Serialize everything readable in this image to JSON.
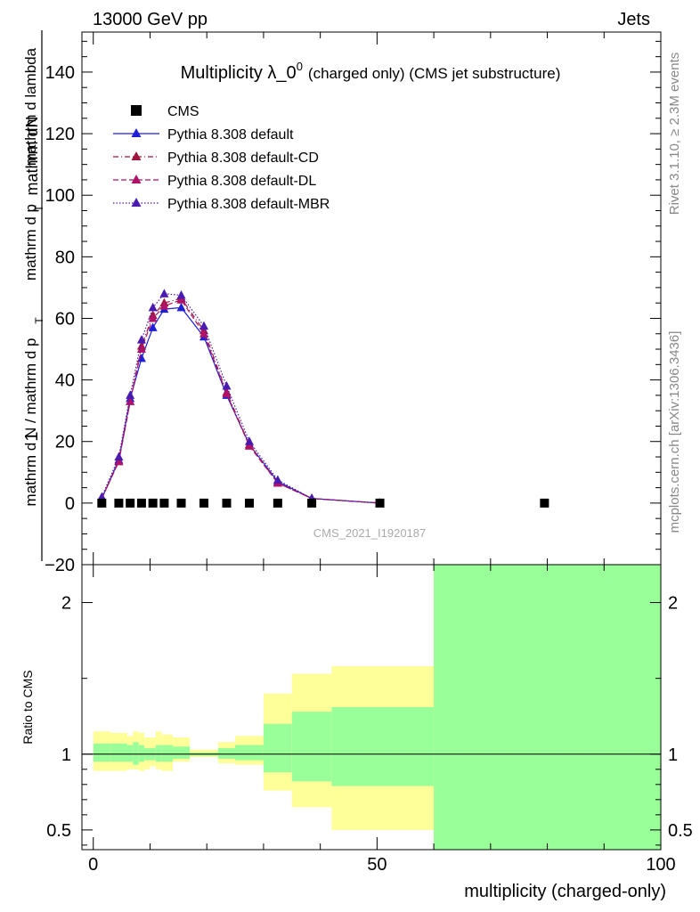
{
  "header": {
    "left": "13000 GeV pp",
    "right": "Jets"
  },
  "side": {
    "rivet": "Rivet 3.1.10, ≥ 2.3M events",
    "mcplots": "mcplots.cern.ch [arXiv:1306.3436]"
  },
  "analysis_id": "CMS_2021_I1920187",
  "chart_data": [
    {
      "type": "line",
      "title_main": "Multiplicity λ_0",
      "title_sup": "0",
      "title_suffix": "(charged only) (CMS jet substructure)",
      "ylabel_num": "1",
      "ylabel_num_dn": "mathrm dN",
      "ylabel_den": "mathrm d N / mathrm d p",
      "ylabel_den2": "mathrm d p",
      "ylabel_den_tail": "mathrm d lambda",
      "ylabel_sub": "T",
      "xlim": [
        -2,
        100
      ],
      "ylim": [
        -20,
        153
      ],
      "yticks": [
        -20,
        0,
        20,
        40,
        60,
        80,
        100,
        120,
        140
      ],
      "ytick_labels": [
        "−20",
        "0",
        "20",
        "40",
        "60",
        "80",
        "100",
        "120",
        "140"
      ],
      "legend_position": "top-left",
      "series": [
        {
          "name": "CMS",
          "style": "markers",
          "color": "#000000",
          "x": [
            1.5,
            4.5,
            6.5,
            8.5,
            10.5,
            12.5,
            15.5,
            19.5,
            23.5,
            27.5,
            32.5,
            38.5,
            50.5,
            79.5
          ],
          "y": [
            0,
            0,
            0,
            0,
            0,
            0,
            0,
            0,
            0,
            0,
            0,
            0,
            0,
            0
          ]
        },
        {
          "name": "Pythia 8.308 default",
          "style": "solid",
          "color": "#1f1fd6",
          "x": [
            1.5,
            4.5,
            6.5,
            8.5,
            10.5,
            12.5,
            15.5,
            19.5,
            23.5,
            27.5,
            32.5,
            38.5,
            50.5
          ],
          "y": [
            1.5,
            14,
            34,
            47,
            57,
            63,
            63.5,
            54,
            35,
            19,
            7,
            1.5,
            0
          ]
        },
        {
          "name": "Pythia 8.308 default-CD",
          "style": "dashdot",
          "color": "#a0153e",
          "x": [
            1.5,
            4.5,
            6.5,
            8.5,
            10.5,
            12.5,
            15.5,
            19.5,
            23.5,
            27.5,
            32.5,
            38.5,
            50.5
          ],
          "y": [
            1.5,
            13.5,
            33,
            51,
            61,
            65,
            66.5,
            56,
            36,
            19,
            6.5,
            1.5,
            0
          ]
        },
        {
          "name": "Pythia 8.308 default-DL",
          "style": "dashed",
          "color": "#b0126a",
          "x": [
            1.5,
            4.5,
            6.5,
            8.5,
            10.5,
            12.5,
            15.5,
            19.5,
            23.5,
            27.5,
            32.5,
            38.5,
            50.5
          ],
          "y": [
            1.5,
            13.5,
            33,
            50,
            60,
            64,
            66,
            55,
            35.5,
            18.5,
            6.5,
            1.5,
            0
          ]
        },
        {
          "name": "Pythia 8.308 default-MBR",
          "style": "dotted",
          "color": "#4a1bb0",
          "x": [
            1.5,
            4.5,
            6.5,
            8.5,
            10.5,
            12.5,
            15.5,
            19.5,
            23.5,
            27.5,
            32.5,
            38.5,
            50.5
          ],
          "y": [
            2,
            15,
            35,
            53,
            63.5,
            68,
            67.5,
            57.5,
            38,
            20,
            7.5,
            1.5,
            0
          ]
        }
      ]
    },
    {
      "type": "area",
      "ylabel": "Ratio to CMS",
      "xlabel": "multiplicity (charged-only)",
      "xlim": [
        -2,
        100
      ],
      "ylim": [
        0.37,
        2.25
      ],
      "xticks": [
        0,
        50,
        100
      ],
      "xtick_labels": [
        "0",
        "50",
        "100"
      ],
      "yticks": [
        0.5,
        1,
        2
      ],
      "ytick_labels": [
        "0.5",
        "1",
        "2"
      ],
      "reference_line": 1,
      "bands": {
        "bin_edges": [
          0,
          3,
          6,
          7,
          8,
          9,
          10,
          11,
          12,
          14,
          17,
          22,
          25,
          30,
          35,
          42,
          60,
          100
        ],
        "outer_color": "#ffff99",
        "inner_color": "#99ff99",
        "outer_low": [
          0.89,
          0.89,
          0.9,
          0.9,
          0.89,
          0.9,
          0.92,
          0.9,
          0.89,
          0.95,
          0.98,
          0.94,
          0.93,
          0.76,
          0.65,
          0.5,
          0.37
        ],
        "outer_high": [
          1.15,
          1.14,
          1.12,
          1.15,
          1.14,
          1.11,
          1.11,
          1.15,
          1.13,
          1.11,
          1.03,
          1.08,
          1.12,
          1.4,
          1.53,
          1.58,
          2.25
        ],
        "inner_low": [
          0.95,
          0.95,
          0.95,
          0.93,
          0.95,
          0.96,
          0.96,
          0.95,
          0.95,
          0.97,
          0.99,
          0.97,
          0.96,
          0.88,
          0.82,
          0.79,
          0.37
        ],
        "inner_high": [
          1.07,
          1.07,
          1.06,
          1.08,
          1.06,
          1.04,
          1.04,
          1.06,
          1.06,
          1.05,
          1.01,
          1.04,
          1.06,
          1.2,
          1.28,
          1.31,
          2.25
        ]
      }
    }
  ]
}
